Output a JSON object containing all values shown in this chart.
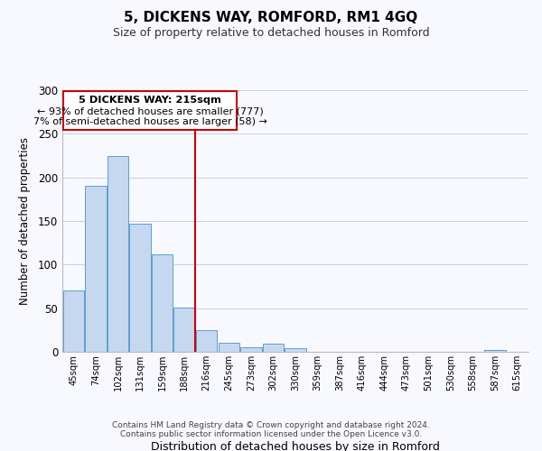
{
  "title": "5, DICKENS WAY, ROMFORD, RM1 4GQ",
  "subtitle": "Size of property relative to detached houses in Romford",
  "xlabel": "Distribution of detached houses by size in Romford",
  "ylabel": "Number of detached properties",
  "bar_labels": [
    "45sqm",
    "74sqm",
    "102sqm",
    "131sqm",
    "159sqm",
    "188sqm",
    "216sqm",
    "245sqm",
    "273sqm",
    "302sqm",
    "330sqm",
    "359sqm",
    "387sqm",
    "416sqm",
    "444sqm",
    "473sqm",
    "501sqm",
    "530sqm",
    "558sqm",
    "587sqm",
    "615sqm"
  ],
  "bar_values": [
    70,
    190,
    225,
    147,
    112,
    51,
    25,
    10,
    5,
    9,
    4,
    0,
    0,
    0,
    0,
    0,
    0,
    0,
    0,
    2,
    0
  ],
  "bar_color": "#c5d8f0",
  "bar_edge_color": "#5a9fd4",
  "highlight_line_index": 6,
  "highlight_color": "#cc0000",
  "annotation_title": "5 DICKENS WAY: 215sqm",
  "annotation_line1": "← 93% of detached houses are smaller (777)",
  "annotation_line2": "7% of semi-detached houses are larger (58) →",
  "ylim": [
    0,
    300
  ],
  "yticks": [
    0,
    50,
    100,
    150,
    200,
    250,
    300
  ],
  "footer1": "Contains HM Land Registry data © Crown copyright and database right 2024.",
  "footer2": "Contains public sector information licensed under the Open Licence v3.0.",
  "background_color": "#f8f8ff"
}
